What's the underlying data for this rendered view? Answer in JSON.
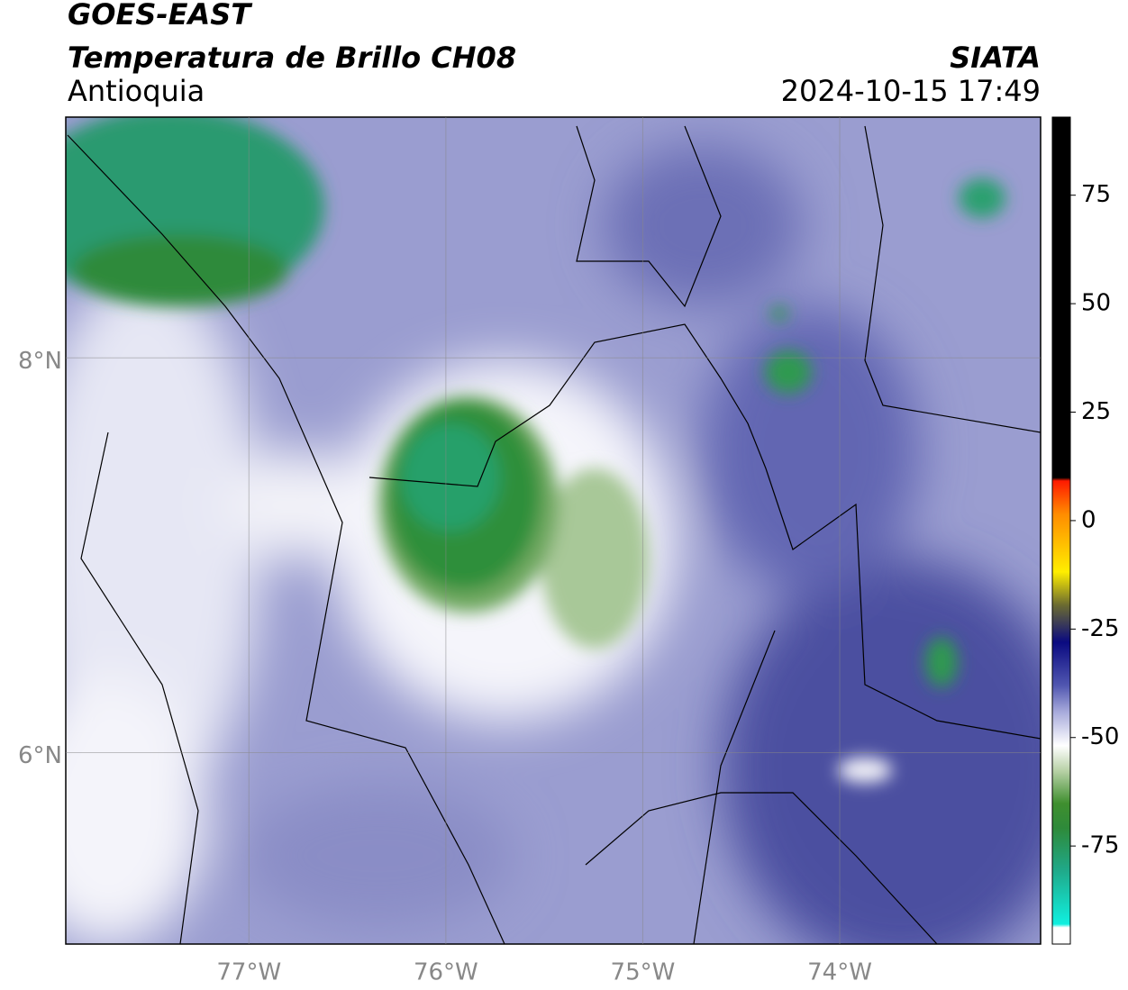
{
  "map": {
    "title": "GOES-EAST",
    "subtitle": "Temperatura de Brillo CH08",
    "region": "Antioquia",
    "source": "SIATA",
    "timestamp": "2024-10-15 17:49",
    "xlim": [
      -77.93,
      -72.98
    ],
    "ylim": [
      5.03,
      9.22
    ],
    "xticks": [
      {
        "value": -77,
        "label": "77°W"
      },
      {
        "value": -76,
        "label": "76°W"
      },
      {
        "value": -75,
        "label": "75°W"
      },
      {
        "value": -74,
        "label": "74°W"
      }
    ],
    "yticks": [
      {
        "value": 8,
        "label": "8°N"
      },
      {
        "value": 6,
        "label": "6°N"
      }
    ],
    "colorbar": {
      "lim": [
        -97.6,
        93
      ],
      "ticks": [
        75,
        50,
        25,
        0,
        -25,
        -50,
        -75
      ]
    }
  }
}
